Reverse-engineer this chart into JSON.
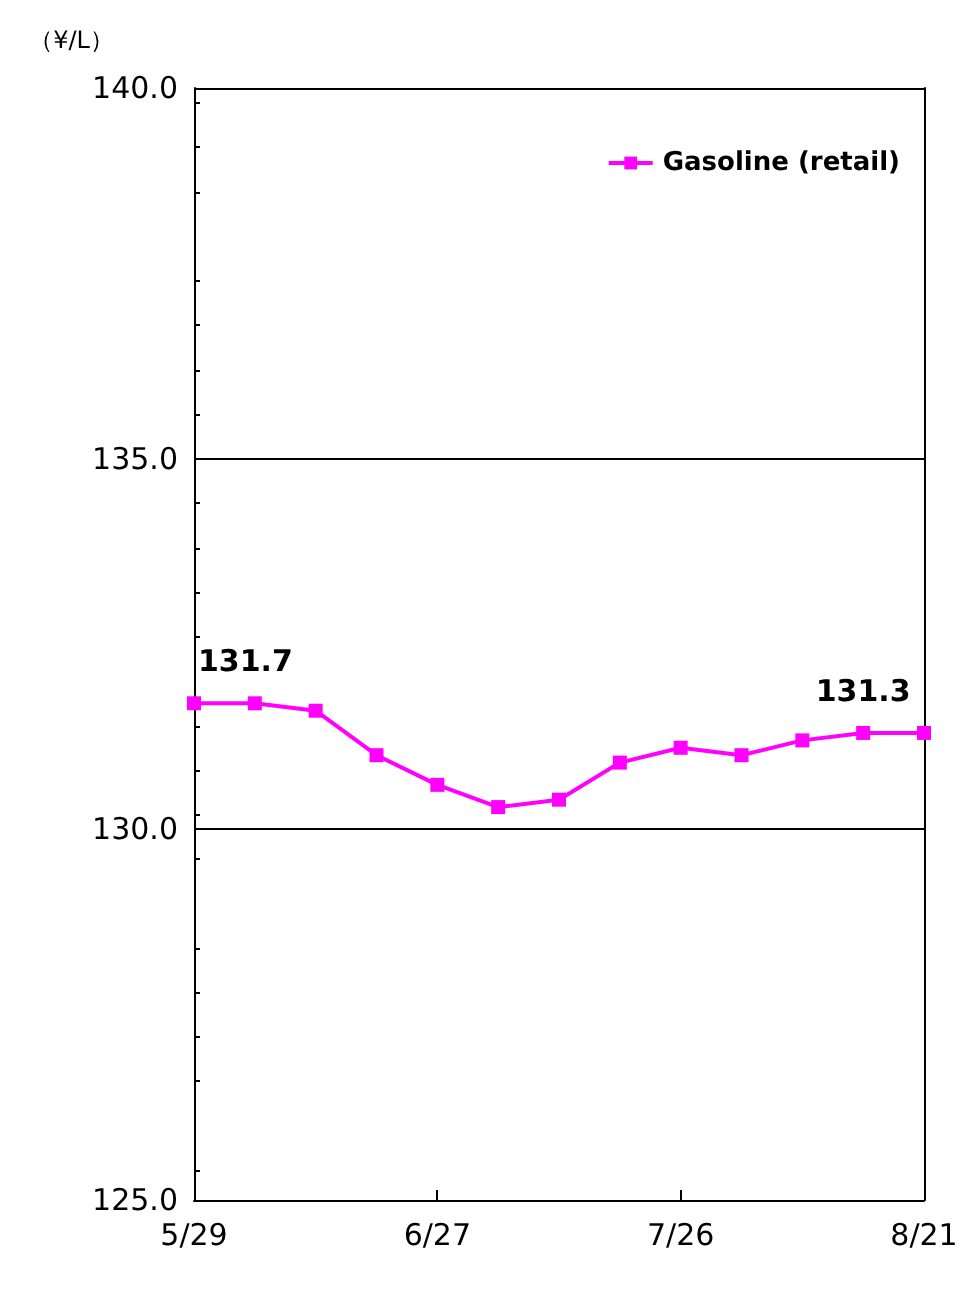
{
  "chart_data": {
    "type": "line",
    "ylabel": "（¥/L）",
    "categories": [
      "5/29",
      null,
      null,
      null,
      "6/27",
      null,
      null,
      null,
      "7/26",
      null,
      null,
      null,
      "8/21"
    ],
    "series": [
      {
        "name": "Gasoline (retail)",
        "color": "#ff00ff",
        "values": [
          131.7,
          131.7,
          131.6,
          131.0,
          130.6,
          130.3,
          130.4,
          130.9,
          131.1,
          131.0,
          131.2,
          131.3,
          131.3
        ],
        "value_labels": [
          "131.7",
          null,
          null,
          null,
          null,
          null,
          null,
          null,
          null,
          null,
          null,
          "131.3",
          null
        ]
      }
    ],
    "ylim": [
      125,
      140
    ],
    "yticks": [
      {
        "value": 125,
        "label": "125.0"
      },
      {
        "value": 130,
        "label": "130.0"
      },
      {
        "value": 135,
        "label": "135.0"
      },
      {
        "value": 140,
        "label": "140.0"
      }
    ],
    "grid": "y",
    "legend": "top right",
    "marker": "square",
    "line_style": "solid"
  }
}
